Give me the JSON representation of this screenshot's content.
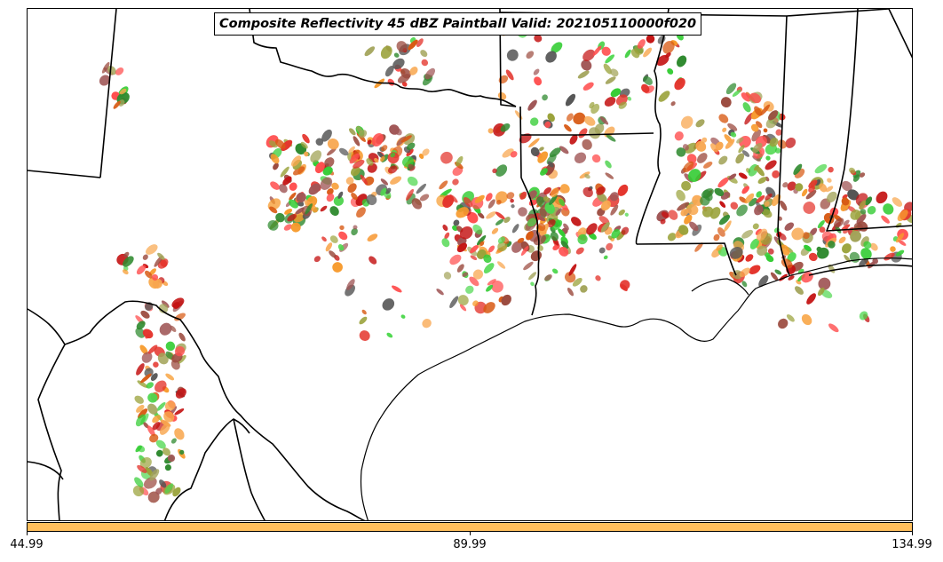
{
  "title": "Composite Reflectivity 45 dBZ Paintball Valid: 202105110000f020",
  "colorbar": {
    "color": "#ffbf5c",
    "ticks": [
      "44.99",
      "89.99",
      "134.99"
    ]
  },
  "paintball_colors": [
    "#e4342c",
    "#c41414",
    "#f79a2c",
    "#f8a64e",
    "#9b4a3e",
    "#a05656",
    "#2f8a2f",
    "#33cc33",
    "#4fd84f",
    "#9aa23a",
    "#a3a45a",
    "#555555",
    "#d85a14",
    "#ff4f4f"
  ],
  "icons": [
    "state-boundary",
    "coastline",
    "storm-cell"
  ]
}
